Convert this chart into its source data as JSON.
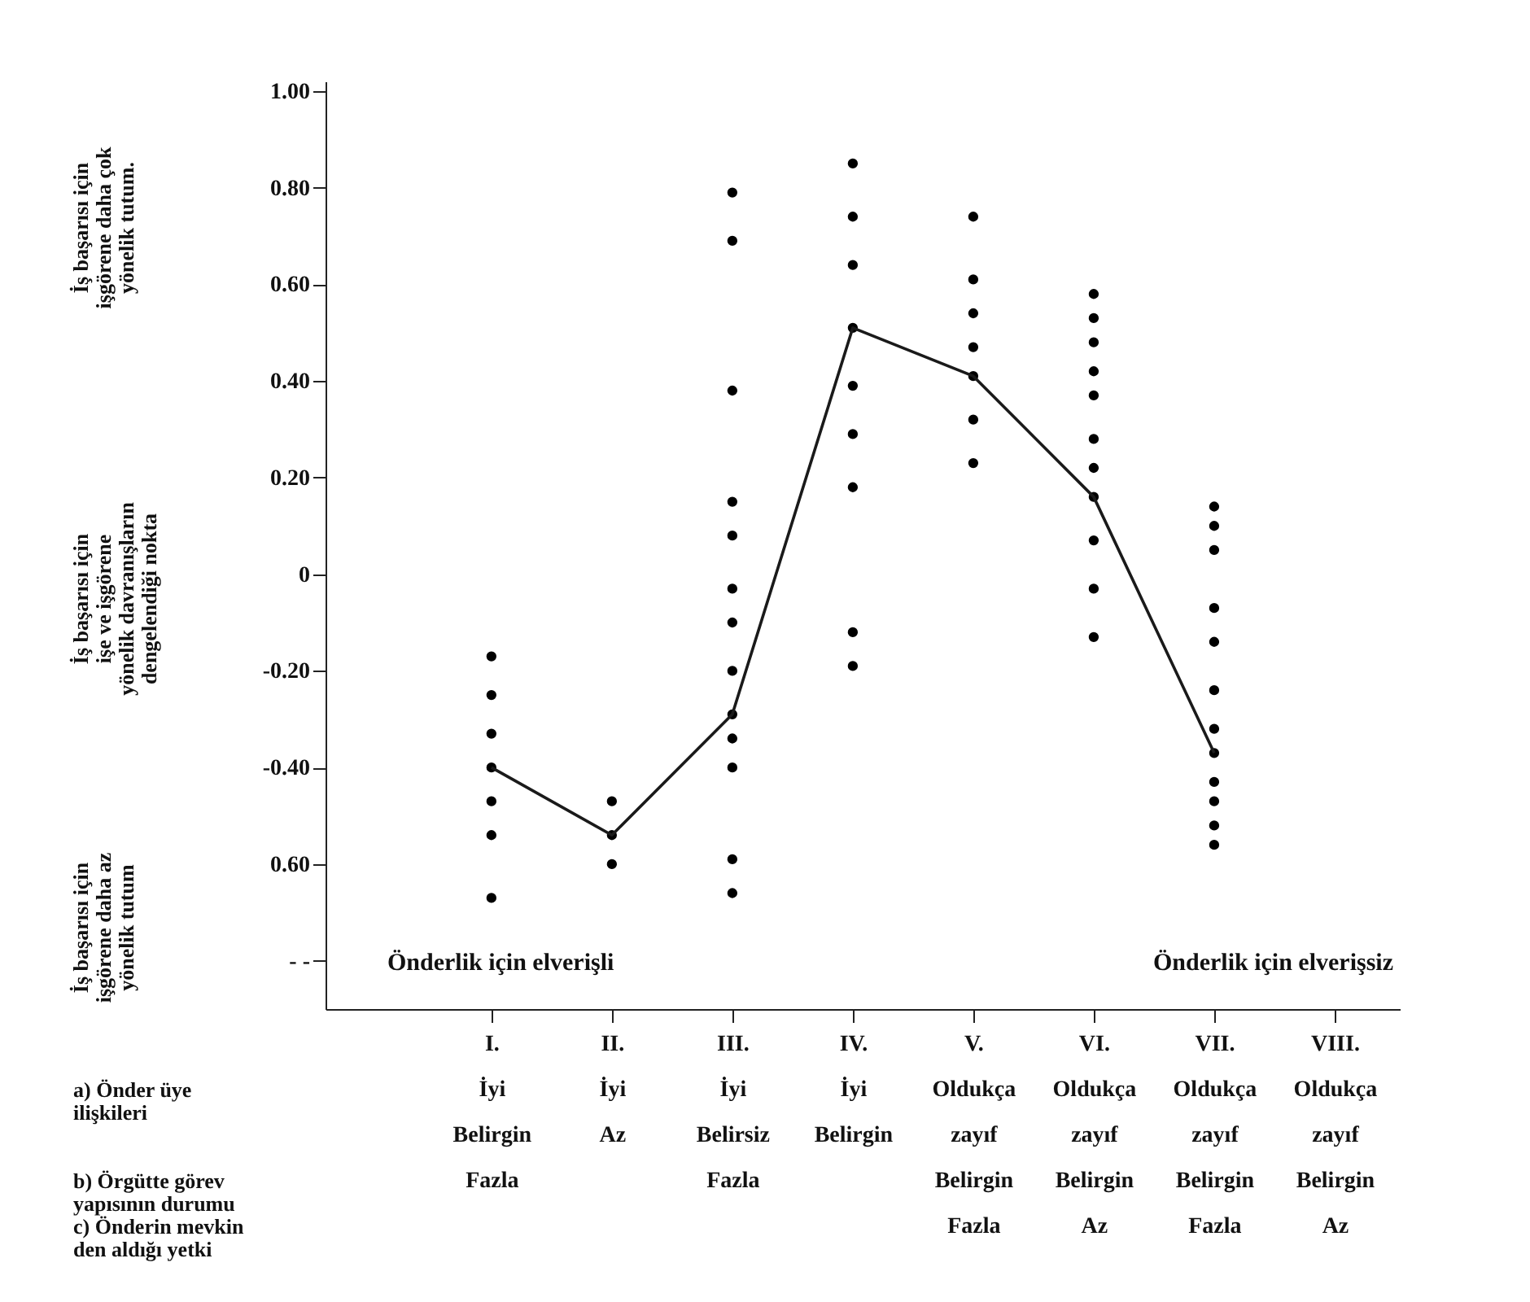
{
  "chart_data": {
    "type": "scatter",
    "categories": [
      "I.\nİyi\n\nBelirgin\nFazla",
      "II.\nİyi\n\n\nAz",
      "III.\nİyi\n\nBelirsiz\nFazla",
      "IV.\nİyi\n\nBelirgin\n",
      "V.\nOldukça\nzayıf\nBelirgin\nFazla",
      "VI.\nOldukça\nzayıf\nBelirgin\nAz",
      "VII.\nOldukça\nzayıf\nBelirgin\nFazla",
      "VIII.\nOldukça\nzayıf\nBelirgin\nAz"
    ],
    "series": [
      {
        "color": "#000000",
        "x": [
          "I.\nİyi\n\nBelirgin\nFazla",
          "I.\nİyi\n\nBelirgin\nFazla",
          "I.\nİyi\n\nBelirgin\nFazla",
          "I.\nİyi\n\nBelirgin\nFazla",
          "I.\nİyi\n\nBelirgin\nFazla",
          "I.\nİyi\n\nBelirgin\nFazla",
          "I.\nİyi\n\nBelirgin\nFazla",
          "II.\nİyi\n\n\nAz",
          "II.\nİyi\n\n\nAz",
          "II.\nİyi\n\n\nAz",
          "III.\nİyi\n\nBelirsiz\nFazla",
          "III.\nİyi\n\nBelirsiz\nFazla",
          "III.\nİyi\n\nBelirsiz\nFazla",
          "III.\nİyi\n\nBelirsiz\nFazla",
          "III.\nİyi\n\nBelirsiz\nFazla",
          "III.\nİyi\n\nBelirsiz\nFazla",
          "III.\nİyi\n\nBelirsiz\nFazla",
          "III.\nİyi\n\nBelirsiz\nFazla",
          "III.\nİyi\n\nBelirsiz\nFazla",
          "III.\nİyi\n\nBelirsiz\nFazla",
          "III.\nİyi\n\nBelirsiz\nFazla",
          "III.\nİyi\n\nBelirsiz\nFazla",
          "III.\nİyi\n\nBelirsiz\nFazla",
          "IV.\nİyi\n\nBelirgin\n",
          "IV.\nİyi\n\nBelirgin\n",
          "IV.\nİyi\n\nBelirgin\n",
          "IV.\nİyi\n\nBelirgin\n",
          "IV.\nİyi\n\nBelirgin\n",
          "IV.\nİyi\n\nBelirgin\n",
          "IV.\nİyi\n\nBelirgin\n",
          "IV.\nİyi\n\nBelirgin\n",
          "IV.\nİyi\n\nBelirgin\n",
          "V.\nOldukça\nzayıf\nBelirgin\nFazla",
          "V.\nOldukça\nzayıf\nBelirgin\nFazla",
          "V.\nOldukça\nzayıf\nBelirgin\nFazla",
          "V.\nOldukça\nzayıf\nBelirgin\nFazla",
          "V.\nOldukça\nzayıf\nBelirgin\nFazla",
          "V.\nOldukça\nzayıf\nBelirgin\nFazla",
          "V.\nOldukça\nzayıf\nBelirgin\nFazla",
          "VI.\nOldukça\nzayıf\nBelirgin\nAz",
          "VI.\nOldukça\nzayıf\nBelirgin\nAz",
          "VI.\nOldukça\nzayıf\nBelirgin\nAz",
          "VI.\nOldukça\nzayıf\nBelirgin\nAz",
          "VI.\nOldukça\nzayıf\nBelirgin\nAz",
          "VI.\nOldukça\nzayıf\nBelirgin\nAz",
          "VI.\nOldukça\nzayıf\nBelirgin\nAz",
          "VI.\nOldukça\nzayıf\nBelirgin\nAz",
          "VI.\nOldukça\nzayıf\nBelirgin\nAz",
          "VI.\nOldukça\nzayıf\nBelirgin\nAz",
          "VI.\nOldukça\nzayıf\nBelirgin\nAz",
          "VII.\nOldukça\nzayıf\nBelirgin\nFazla",
          "VII.\nOldukça\nzayıf\nBelirgin\nFazla",
          "VII.\nOldukça\nzayıf\nBelirgin\nFazla",
          "VII.\nOldukça\nzayıf\nBelirgin\nFazla",
          "VII.\nOldukça\nzayıf\nBelirgin\nFazla",
          "VII.\nOldukça\nzayıf\nBelirgin\nFazla",
          "VII.\nOldukça\nzayıf\nBelirgin\nFazla",
          "VII.\nOldukça\nzayıf\nBelirgin\nFazla",
          "VII.\nOldukça\nzayıf\nBelirgin\nFazla",
          "VII.\nOldukça\nzayıf\nBelirgin\nFazla",
          "VII.\nOldukça\nzayıf\nBelirgin\nFazla",
          "VII.\nOldukça\nzayıf\nBelirgin\nFazla"
        ],
        "values": [
          -0.17,
          -0.25,
          -0.33,
          -0.4,
          -0.47,
          -0.54,
          -0.67,
          -0.47,
          -0.54,
          -0.6,
          0.79,
          0.69,
          0.38,
          0.15,
          0.08,
          -0.03,
          -0.1,
          -0.2,
          -0.29,
          -0.34,
          -0.4,
          -0.59,
          -0.66,
          0.85,
          0.74,
          0.64,
          0.51,
          0.39,
          0.29,
          0.18,
          -0.12,
          -0.19,
          0.74,
          0.61,
          0.54,
          0.47,
          0.41,
          0.32,
          0.23,
          0.58,
          0.53,
          0.48,
          0.42,
          0.37,
          0.28,
          0.22,
          0.16,
          0.07,
          -0.03,
          -0.13,
          0.14,
          0.1,
          0.05,
          -0.07,
          -0.14,
          -0.24,
          -0.32,
          -0.37,
          -0.43,
          -0.47,
          -0.52,
          -0.56
        ]
      },
      {
        "type": "line",
        "marker": "none",
        "color": "#1a1a1a",
        "values": [
          -0.4,
          -0.54,
          -0.29,
          0.51,
          0.41,
          0.16,
          -0.37,
          null
        ]
      }
    ],
    "ylim": [
      -0.9,
      1.02
    ],
    "yticks": [
      {
        "value": 1,
        "label": "1.00"
      },
      {
        "value": 0.8,
        "label": "0.80"
      },
      {
        "value": 0.6,
        "label": "0.60"
      },
      {
        "value": 0.4,
        "label": "0.40"
      },
      {
        "value": 0.2,
        "label": "0.20"
      },
      0,
      {
        "value": -0.2,
        "label": "-0.20"
      },
      {
        "value": -0.4,
        "label": "-0.40"
      },
      {
        "value": -0.6,
        "label": "0.60"
      },
      {
        "value": -0.8,
        "label": "- -"
      }
    ],
    "marker": "circle",
    "grid": false,
    "annotations": [
      "İş başarısı için\nişgörene daha çok\nyönelik tutum.",
      "İş başarısı için\nişe ve işgörene\nyönelik davranışların\ndengelendiği nokta",
      "İş başarısı için\nişgörene daha az\nyönelik tutum",
      "Önderlik için elverişli",
      "Önderlik için elverişsiz",
      "a) Önder üye\nilişkileri",
      "b) Örgütte görev\nyapısının durumu",
      "c) Önderin mevkin\nden aldığı yetki"
    ]
  }
}
